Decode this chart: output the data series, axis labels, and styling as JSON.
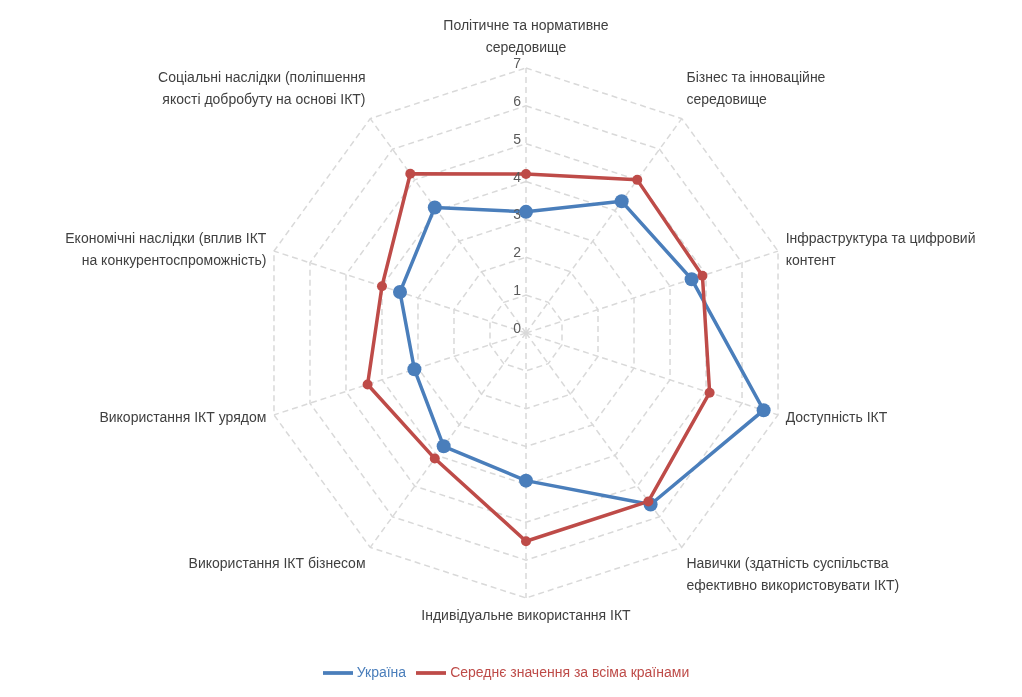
{
  "chart_data": {
    "type": "radar",
    "categories": [
      "Політичне та нормативне середовище",
      "Бізнес та інноваційне середовище",
      "Інфраструктура та цифровий контент",
      "Доступність ІКТ",
      "Навички (здатність суспільства ефективно використовувати ІКТ)",
      "Індивідуальне використання ІКТ",
      "Використання ІКТ бізнесом",
      "Використання ІКТ урядом",
      "Економічні наслідки (вплив ІКТ на конкурентоспроможність)",
      "Соціальні наслідки (поліпшення якості добробуту на основі ІКТ)"
    ],
    "series": [
      {
        "name": "Україна",
        "color": "#4a7ebb",
        "values": [
          3.2,
          4.3,
          4.6,
          6.6,
          5.6,
          3.9,
          3.7,
          3.1,
          3.5,
          4.1
        ]
      },
      {
        "name": "Середнє значення за всіма країнами",
        "color": "#be4b48",
        "values": [
          4.2,
          5.0,
          4.9,
          5.1,
          5.5,
          5.5,
          4.1,
          4.4,
          4.0,
          5.2
        ]
      }
    ],
    "ylim": [
      0,
      7
    ],
    "yticks": [
      0,
      1,
      2,
      3,
      4,
      5,
      6,
      7
    ],
    "grid": true,
    "legend": "bottom",
    "marker": "circle",
    "line_style": "solid"
  }
}
